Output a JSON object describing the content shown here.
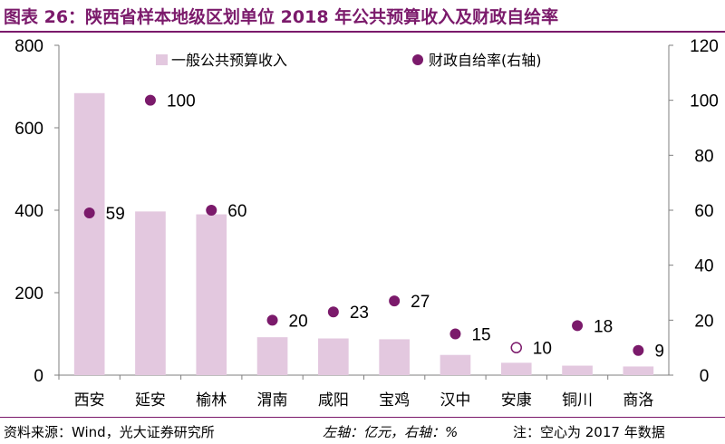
{
  "header": {
    "title": "图表 26：陕西省样本地级区划单位 2018 年公共预算收入及财政自给率"
  },
  "footer": {
    "source": "资料来源：Wind，光大证券研究所",
    "axis_note": "左轴：亿元，右轴：%",
    "note": "注：空心为 2017 年数据"
  },
  "colors": {
    "bar": "#e3c8df",
    "dot": "#7b1a6b",
    "title": "#7b1a6b"
  },
  "chart_data": {
    "type": "bar",
    "categories": [
      "西安",
      "延安",
      "榆林",
      "渭南",
      "咸阳",
      "宝鸡",
      "汉中",
      "安康",
      "铜川",
      "商洛"
    ],
    "series": [
      {
        "name": "一般公共预算收入",
        "axis": "left",
        "type": "bar",
        "values": [
          684,
          397,
          390,
          92,
          89,
          87,
          49,
          30,
          23,
          21
        ]
      },
      {
        "name": "财政自给率(右轴)",
        "axis": "right",
        "type": "scatter",
        "values": [
          59,
          100,
          60,
          20,
          23,
          27,
          15,
          10,
          18,
          9
        ],
        "labels": [
          "59",
          "100",
          "60",
          "20",
          "23",
          "27",
          "15",
          "10",
          "18",
          "9"
        ],
        "hollow": [
          false,
          false,
          false,
          false,
          false,
          false,
          false,
          true,
          false,
          false
        ]
      }
    ],
    "y_left": {
      "ylim": [
        0,
        800
      ],
      "ticks": [
        "0",
        "200",
        "400",
        "600",
        "800"
      ]
    },
    "y_right": {
      "ylim": [
        0,
        120
      ],
      "ticks": [
        "0",
        "20",
        "40",
        "60",
        "80",
        "100",
        "120"
      ]
    },
    "legend_position": "top",
    "grid": false
  }
}
